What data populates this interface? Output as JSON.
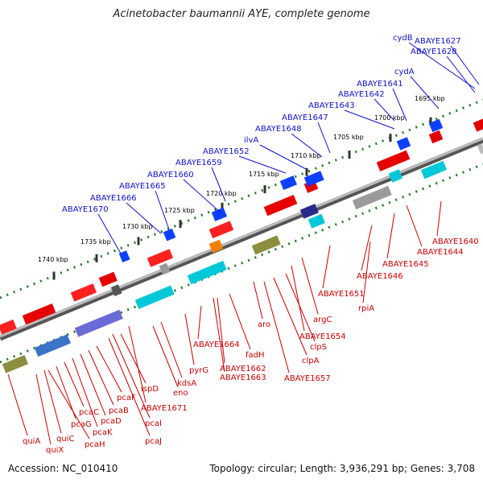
{
  "title": "Acinetobacter baumannii AYE, complete genome",
  "footer": {
    "accession": "Accession: NC_010410",
    "summary": "Topology: circular; Length: 3,936,291 bp; Genes: 3,708"
  },
  "colors": {
    "top_label": "#1010c8",
    "bottom_label": "#c80000",
    "backbone": "#7f7f7f",
    "tick": "#1f7a1f",
    "scale_text": "#000000"
  },
  "scale_labels": [
    "1695 kbp",
    "1700 kbp",
    "1705 kbp",
    "1710 kbp",
    "1715 kbp",
    "1720 kbp",
    "1725 kbp",
    "1730 kbp",
    "1735 kbp",
    "1740 kbp"
  ],
  "top_labels": [
    "cydB",
    "ABAYE1627",
    "ABAYE1628",
    "cydA",
    "ABAYE1641",
    "ABAYE1642",
    "ABAYE1643",
    "ABAYE1647",
    "ABAYE1648",
    "ilvA",
    "ABAYE1652",
    "ABAYE1659",
    "ABAYE1660",
    "ABAYE1665",
    "ABAYE1666",
    "ABAYE1670"
  ],
  "bottom_labels": [
    "ABAYE1640",
    "ABAYE1644",
    "ABAYE1645",
    "ABAYE1646",
    "rpiA",
    "ABAYE1651",
    "argC",
    "ABAYE1654",
    "clpS",
    "clpA",
    "ABAYE1657",
    "aro",
    "fadH",
    "ABAYE1662",
    "ABAYE1663",
    "ABAYE1664",
    "pyrG",
    "kdsA",
    "eno",
    "ABAYE1671",
    "ispD",
    "pcaI",
    "pcaJ",
    "pcaF",
    "pcaB",
    "pcaD",
    "pcaK",
    "pcaC",
    "pcaG",
    "pcaH",
    "quiC",
    "quiX",
    "quiA"
  ]
}
